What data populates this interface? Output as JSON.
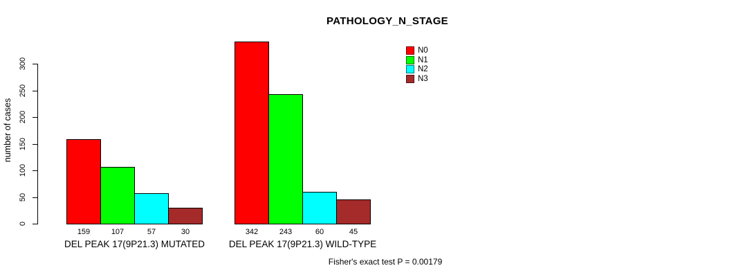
{
  "chart_data": {
    "type": "bar",
    "title": "PATHOLOGY_N_STAGE",
    "ylabel": "number of cases",
    "categories": [
      "DEL PEAK 17(9P21.3) MUTATED",
      "DEL PEAK 17(9P21.3) WILD-TYPE"
    ],
    "series": [
      {
        "name": "N0",
        "color": "#ff0000",
        "values": [
          159,
          342
        ]
      },
      {
        "name": "N1",
        "color": "#00ff00",
        "values": [
          107,
          243
        ]
      },
      {
        "name": "N2",
        "color": "#00ffff",
        "values": [
          57,
          60
        ]
      },
      {
        "name": "N3",
        "color": "#a52a2a",
        "values": [
          30,
          45
        ]
      }
    ],
    "y_ticks": [
      0,
      50,
      100,
      150,
      200,
      250,
      300
    ],
    "ylim": [
      0,
      345
    ],
    "grid": false,
    "legend_position": "top-right",
    "bar_value_labels": true,
    "footer": "Fisher's exact test P = 0.00179"
  }
}
